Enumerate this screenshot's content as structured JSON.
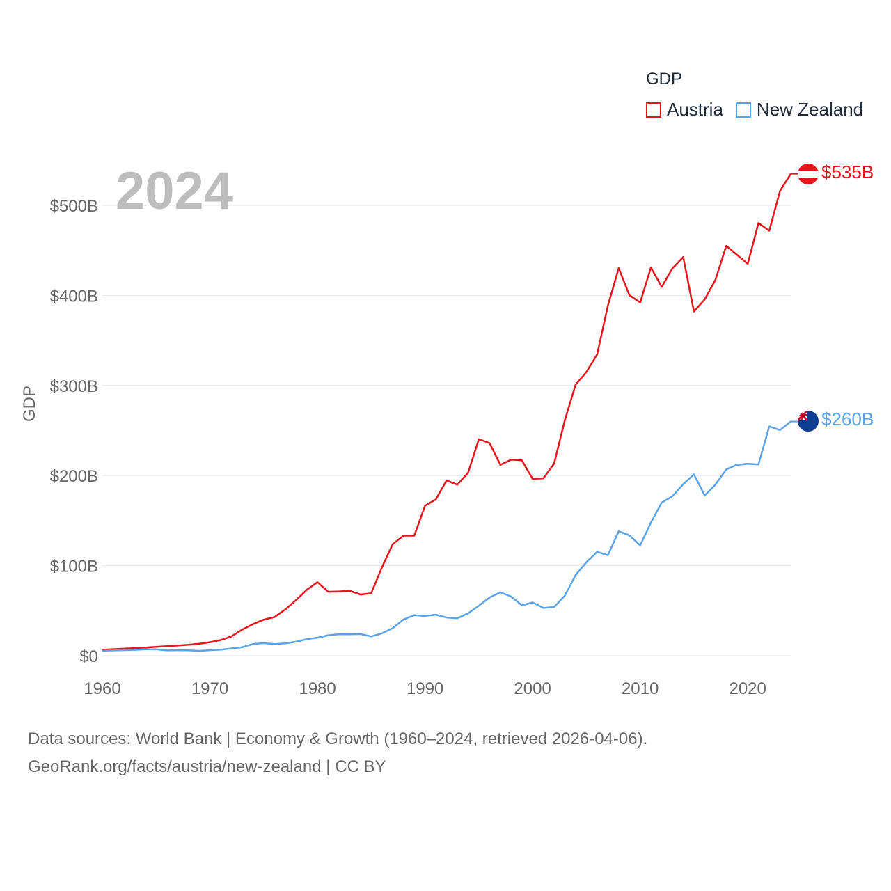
{
  "colors": {
    "austria": "#e8141b",
    "new_zealand": "#5ba3e6",
    "grid": "#e6e6e6",
    "axis_text": "#666666",
    "year": "#bdbdbd"
  },
  "legend": {
    "title": "GDP",
    "items": [
      {
        "label": "Austria",
        "color": "#e8141b"
      },
      {
        "label": "New Zealand",
        "color": "#5ba3e6"
      }
    ]
  },
  "year_label": "2024",
  "end_labels": {
    "austria": "$535B",
    "new_zealand": "$260B"
  },
  "flag_icons": {
    "austria": "austria-flag-icon",
    "new_zealand": "new-zealand-flag-icon"
  },
  "footer": {
    "line1": "Data sources: World Bank | Economy & Growth (1960–2024, retrieved 2026-04-06).",
    "line2": "GeoRank.org/facts/austria/new-zealand | CC BY"
  },
  "chart_data": {
    "type": "line",
    "title": "",
    "xlabel": "",
    "ylabel": "GDP",
    "xlim": [
      1960,
      2024
    ],
    "ylim": [
      0,
      500
    ],
    "unit": "billion USD",
    "x_ticks": [
      1960,
      1970,
      1980,
      1990,
      2000,
      2010,
      2020
    ],
    "y_ticks": [
      {
        "value": 0,
        "label": "$0"
      },
      {
        "value": 100,
        "label": "$100B"
      },
      {
        "value": 200,
        "label": "$200B"
      },
      {
        "value": 300,
        "label": "$300B"
      },
      {
        "value": 400,
        "label": "$400B"
      },
      {
        "value": 500,
        "label": "$500B"
      }
    ],
    "x": [
      1960,
      1961,
      1962,
      1963,
      1964,
      1965,
      1966,
      1967,
      1968,
      1969,
      1970,
      1971,
      1972,
      1973,
      1974,
      1975,
      1976,
      1977,
      1978,
      1979,
      1980,
      1981,
      1982,
      1983,
      1984,
      1985,
      1986,
      1987,
      1988,
      1989,
      1990,
      1991,
      1992,
      1993,
      1994,
      1995,
      1996,
      1997,
      1998,
      1999,
      2000,
      2001,
      2002,
      2003,
      2004,
      2005,
      2006,
      2007,
      2008,
      2009,
      2010,
      2011,
      2012,
      2013,
      2014,
      2015,
      2016,
      2017,
      2018,
      2019,
      2020,
      2021,
      2022,
      2023,
      2024
    ],
    "series": [
      {
        "name": "Austria",
        "color": "#e8141b",
        "values": [
          6.6,
          7.3,
          7.8,
          8.4,
          9.1,
          9.8,
          10.6,
          11.3,
          12.1,
          13.2,
          15.0,
          17.4,
          21.4,
          29.0,
          35.0,
          40.0,
          42.9,
          51.2,
          61.7,
          73.1,
          81.7,
          71.0,
          71.4,
          72.1,
          67.9,
          69.4,
          98.4,
          123.9,
          133.3,
          133.3,
          166.5,
          173.4,
          194.6,
          189.9,
          203.1,
          240.4,
          236.1,
          211.9,
          217.6,
          216.9,
          196.4,
          196.9,
          213.3,
          261.7,
          300.9,
          315.0,
          334.4,
          388.7,
          430.3,
          400.2,
          392.3,
          431.1,
          409.4,
          430.1,
          442.6,
          382.1,
          395.6,
          417.3,
          455.1,
          445.1,
          435.2,
          480.4,
          471.8,
          516.0,
          535.0
        ]
      },
      {
        "name": "New Zealand",
        "color": "#5ba3e6",
        "values": [
          5.5,
          5.9,
          6.2,
          6.5,
          7.0,
          7.2,
          5.9,
          6.1,
          6.0,
          5.3,
          6.2,
          6.8,
          8.0,
          9.5,
          12.9,
          14.0,
          12.9,
          13.7,
          15.5,
          18.3,
          20.0,
          22.7,
          23.9,
          23.7,
          24.0,
          21.4,
          24.9,
          30.5,
          40.3,
          45.0,
          44.1,
          45.5,
          42.4,
          41.6,
          47.0,
          55.6,
          64.6,
          70.4,
          65.7,
          56.0,
          59.1,
          53.0,
          54.1,
          66.8,
          89.5,
          103.8,
          115.3,
          111.6,
          138.2,
          133.6,
          122.6,
          147.8,
          170.0,
          177.1,
          190.4,
          201.3,
          177.9,
          190.0,
          206.9,
          212.0,
          213.1,
          212.4,
          254.6,
          250.5,
          260.0
        ]
      }
    ]
  }
}
